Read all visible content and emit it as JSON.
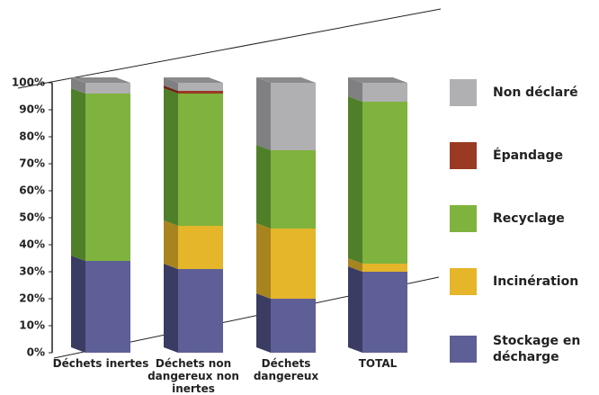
{
  "chart_data": {
    "type": "bar3d_stacked",
    "categories": [
      "Déchets inertes",
      "Déchets non dangereux non inertes",
      "Déchets dangereux",
      "TOTAL"
    ],
    "series": [
      {
        "name": "Stockage en décharge",
        "color": "#5e5f96",
        "side": "#3b3c63",
        "values": [
          34,
          31,
          20,
          30
        ]
      },
      {
        "name": "Incinération",
        "color": "#e5b52a",
        "side": "#a8841f",
        "values": [
          0,
          16,
          26,
          3
        ]
      },
      {
        "name": "Recyclage",
        "color": "#7fb33e",
        "side": "#4f7f28",
        "values": [
          62,
          49,
          29,
          60
        ]
      },
      {
        "name": "Épandage",
        "color": "#9a3a22",
        "side": "#6b2615",
        "values": [
          0,
          1,
          0,
          0
        ]
      },
      {
        "name": "Non déclaré",
        "color": "#b0b0b3",
        "side": "#808083",
        "values": [
          4,
          3,
          25,
          7
        ]
      }
    ],
    "ylim": [
      0,
      100
    ],
    "yticks": [
      {
        "value": 0,
        "label": "0%"
      },
      {
        "value": 10,
        "label": "10%"
      },
      {
        "value": 20,
        "label": "20%"
      },
      {
        "value": 30,
        "label": "30%"
      },
      {
        "value": 40,
        "label": "40%"
      },
      {
        "value": 50,
        "label": "50%"
      },
      {
        "value": 60,
        "label": "60%"
      },
      {
        "value": 70,
        "label": "70%"
      },
      {
        "value": 80,
        "label": "80%"
      },
      {
        "value": 90,
        "label": "90%"
      },
      {
        "value": 100,
        "label": "100%"
      }
    ],
    "top_color": "#8a8a8c"
  }
}
